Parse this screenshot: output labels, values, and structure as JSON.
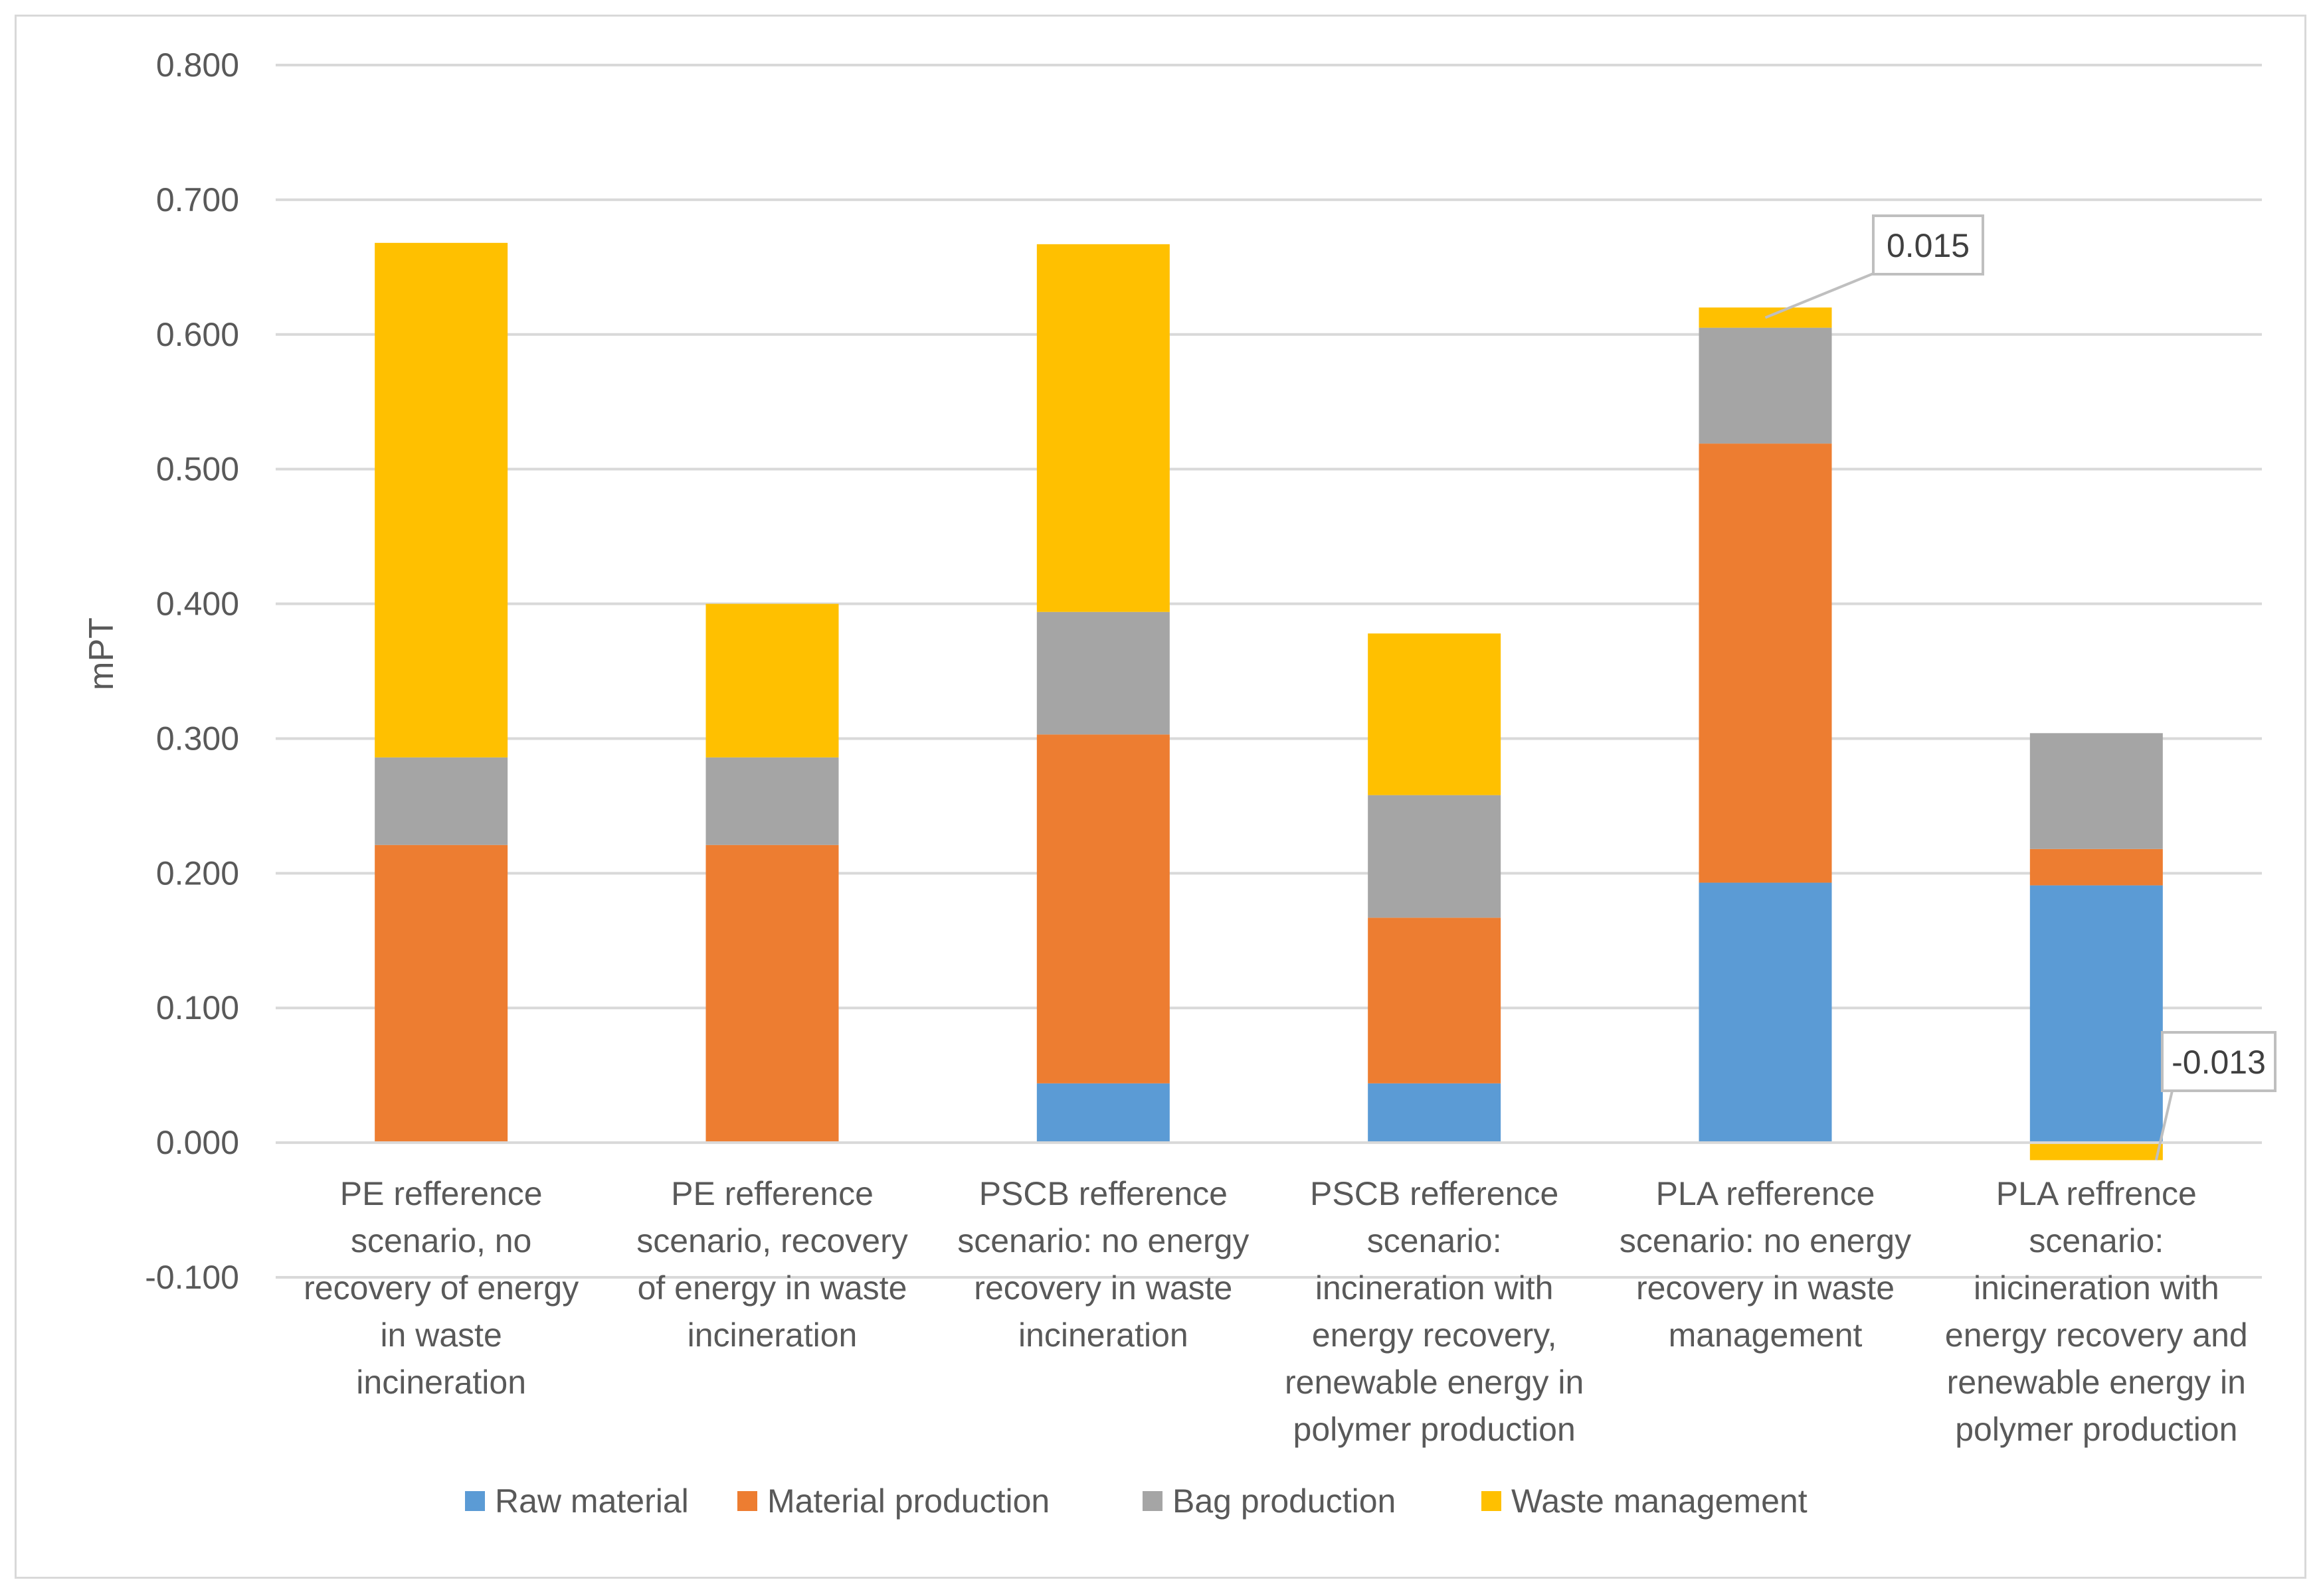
{
  "chart_data": {
    "type": "bar",
    "stacked": true,
    "title": "",
    "xlabel": "",
    "ylabel": "mPT",
    "ylim": [
      -0.1,
      0.8
    ],
    "yticks": [
      -0.1,
      0.0,
      0.1,
      0.2,
      0.3,
      0.4,
      0.5,
      0.6,
      0.7,
      0.8
    ],
    "ytick_labels": [
      "-0.100",
      "0.000",
      "0.100",
      "0.200",
      "0.300",
      "0.400",
      "0.500",
      "0.600",
      "0.700",
      "0.800"
    ],
    "grid": true,
    "legend_position": "bottom",
    "categories": [
      [
        "PE refference",
        "scenario, no",
        "recovery of energy",
        "in waste",
        "incineration"
      ],
      [
        "PE refference",
        "scenario, recovery",
        "of energy in waste",
        "incineration"
      ],
      [
        "PSCB refference",
        "scenario: no energy",
        "recovery in waste",
        "incineration"
      ],
      [
        "PSCB refference",
        "scenario:",
        "incineration with",
        "energy recovery,",
        "renewable energy in",
        "polymer production"
      ],
      [
        "PLA refference",
        "scenario: no energy",
        "recovery in waste",
        "management"
      ],
      [
        "PLA reffrence",
        "scenario:",
        "inicineration with",
        "energy recovery and",
        "renewable energy in",
        "polymer production"
      ]
    ],
    "series": [
      {
        "name": "Raw material",
        "color": "#5b9bd5",
        "values": [
          0.0,
          0.0,
          0.044,
          0.044,
          0.193,
          0.191
        ]
      },
      {
        "name": "Material production",
        "color": "#ed7d31",
        "values": [
          0.221,
          0.221,
          0.259,
          0.123,
          0.326,
          0.027
        ]
      },
      {
        "name": "Bag production",
        "color": "#a5a5a5",
        "values": [
          0.065,
          0.065,
          0.091,
          0.091,
          0.086,
          0.086
        ]
      },
      {
        "name": "Waste management",
        "color": "#ffc000",
        "values": [
          0.382,
          0.114,
          0.273,
          0.12,
          0.015,
          -0.013
        ]
      }
    ],
    "annotations": [
      {
        "text": "0.015",
        "category_index": 4,
        "series": "Waste management"
      },
      {
        "text": "-0.013",
        "category_index": 5,
        "series": "Waste management"
      }
    ]
  }
}
